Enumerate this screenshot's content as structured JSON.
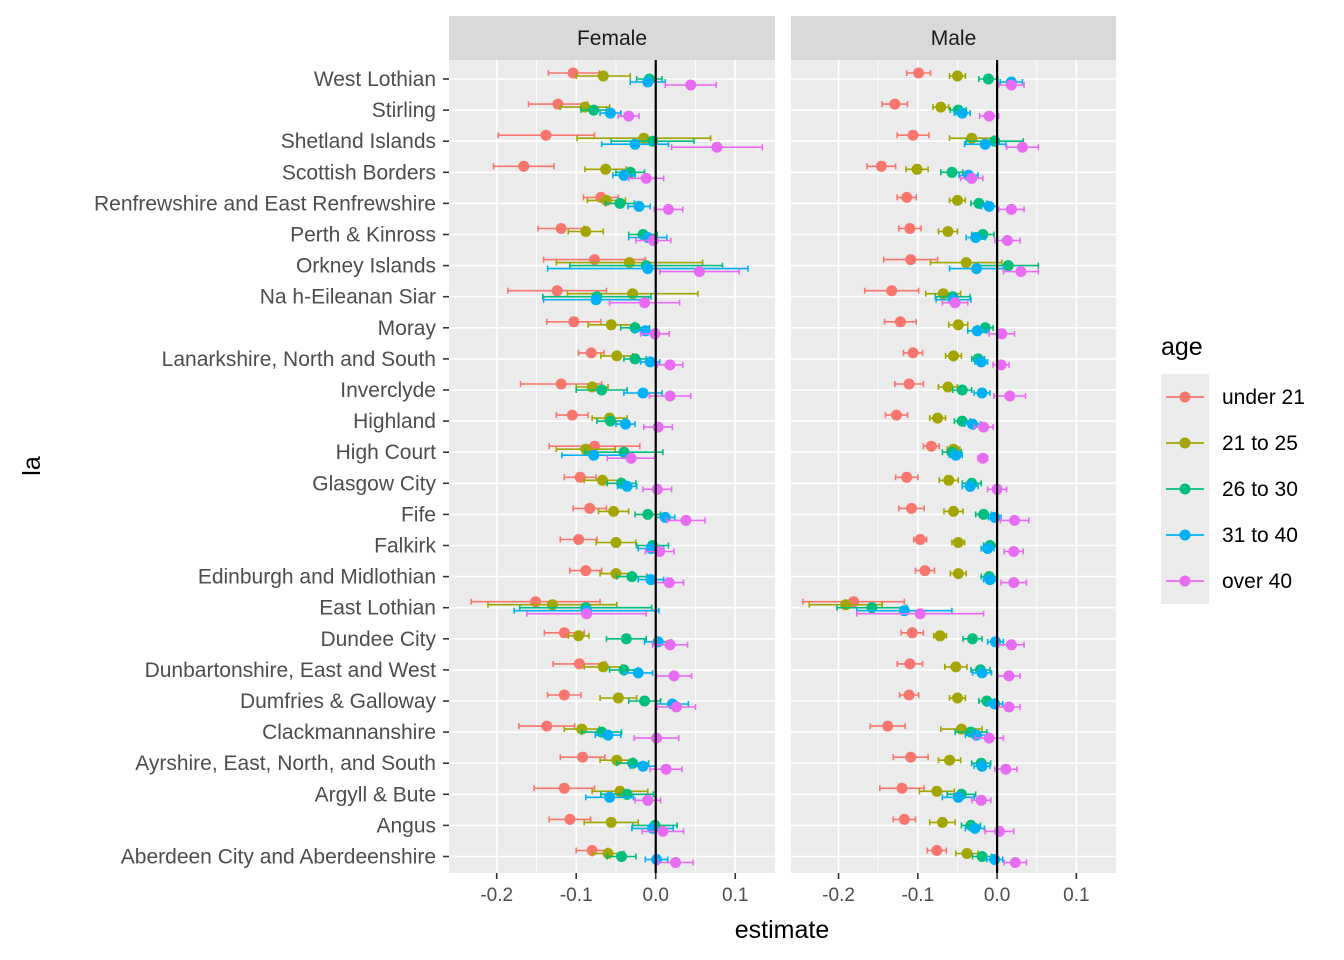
{
  "chart_data": {
    "type": "dot-errorbar",
    "xlabel": "estimate",
    "ylabel": "la",
    "xlim": [
      -0.26,
      0.15
    ],
    "xticks": [
      -0.2,
      -0.1,
      0.0,
      0.1
    ],
    "xtick_labels": [
      "-0.2",
      "-0.1",
      "0.0",
      "0.1"
    ],
    "reference_line": 0,
    "facets": [
      "Female",
      "Male"
    ],
    "categories": [
      "West Lothian",
      "Stirling",
      "Shetland Islands",
      "Scottish Borders",
      "Renfrewshire and East Renfrewshire",
      "Perth & Kinross",
      "Orkney Islands",
      "Na h-Eileanan Siar",
      "Moray",
      "Lanarkshire, North and South",
      "Inverclyde",
      "Highland",
      "High Court",
      "Glasgow City",
      "Fife",
      "Falkirk",
      "Edinburgh and Midlothian",
      "East Lothian",
      "Dundee City",
      "Dunbartonshire, East and West",
      "Dumfries & Galloway",
      "Clackmannanshire",
      "Ayrshire, East, North, and South",
      "Argyll & Bute",
      "Angus",
      "Aberdeen City and Aberdeenshire"
    ],
    "legend": {
      "title": "age",
      "position": "right",
      "entries": [
        "under 21",
        "21 to 25",
        "26 to 30",
        "31 to 40",
        "over 40"
      ]
    },
    "series": [
      {
        "name": "under 21",
        "color": "#F8766D",
        "female": {
          "est": [
            -0.104,
            -0.123,
            -0.138,
            -0.166,
            -0.069,
            -0.119,
            -0.077,
            -0.124,
            -0.103,
            -0.081,
            -0.119,
            -0.105,
            -0.077,
            -0.095,
            -0.083,
            -0.097,
            -0.088,
            -0.151,
            -0.115,
            -0.096,
            -0.115,
            -0.137,
            -0.092,
            -0.115,
            -0.108,
            -0.08
          ],
          "lo": [
            -0.135,
            -0.16,
            -0.198,
            -0.204,
            -0.091,
            -0.148,
            -0.141,
            -0.186,
            -0.137,
            -0.097,
            -0.17,
            -0.125,
            -0.134,
            -0.115,
            -0.104,
            -0.12,
            -0.108,
            -0.232,
            -0.14,
            -0.129,
            -0.136,
            -0.172,
            -0.12,
            -0.153,
            -0.134,
            -0.1
          ],
          "hi": [
            -0.071,
            -0.086,
            -0.077,
            -0.128,
            -0.047,
            -0.09,
            -0.013,
            -0.062,
            -0.069,
            -0.065,
            -0.068,
            -0.085,
            -0.02,
            -0.075,
            -0.062,
            -0.074,
            -0.068,
            -0.07,
            -0.09,
            -0.063,
            -0.094,
            -0.102,
            -0.064,
            -0.077,
            -0.082,
            -0.06
          ]
        },
        "male": {
          "est": [
            -0.099,
            -0.129,
            -0.106,
            -0.146,
            -0.114,
            -0.11,
            -0.109,
            -0.133,
            -0.122,
            -0.106,
            -0.111,
            -0.127,
            -0.083,
            -0.114,
            -0.108,
            -0.097,
            -0.091,
            -0.181,
            -0.107,
            -0.11,
            -0.111,
            -0.138,
            -0.109,
            -0.12,
            -0.117,
            -0.076
          ],
          "lo": [
            -0.114,
            -0.145,
            -0.126,
            -0.164,
            -0.126,
            -0.124,
            -0.143,
            -0.167,
            -0.142,
            -0.118,
            -0.129,
            -0.141,
            -0.093,
            -0.128,
            -0.124,
            -0.105,
            -0.103,
            -0.245,
            -0.121,
            -0.126,
            -0.123,
            -0.16,
            -0.131,
            -0.148,
            -0.131,
            -0.088
          ],
          "hi": [
            -0.084,
            -0.113,
            -0.086,
            -0.128,
            -0.102,
            -0.096,
            -0.075,
            -0.099,
            -0.102,
            -0.094,
            -0.093,
            -0.113,
            -0.073,
            -0.1,
            -0.092,
            -0.089,
            -0.079,
            -0.117,
            -0.093,
            -0.094,
            -0.099,
            -0.116,
            -0.087,
            -0.092,
            -0.103,
            -0.064
          ]
        }
      },
      {
        "name": "21 to 25",
        "color": "#A3A500",
        "female": {
          "est": [
            -0.066,
            -0.089,
            -0.015,
            -0.063,
            -0.062,
            -0.088,
            -0.033,
            -0.029,
            -0.056,
            -0.049,
            -0.08,
            -0.058,
            -0.088,
            -0.067,
            -0.053,
            -0.05,
            -0.05,
            -0.13,
            -0.097,
            -0.066,
            -0.047,
            -0.093,
            -0.049,
            -0.045,
            -0.056,
            -0.06
          ],
          "lo": [
            -0.1,
            -0.12,
            -0.099,
            -0.089,
            -0.086,
            -0.11,
            -0.125,
            -0.111,
            -0.085,
            -0.069,
            -0.1,
            -0.08,
            -0.125,
            -0.09,
            -0.072,
            -0.075,
            -0.07,
            -0.211,
            -0.11,
            -0.09,
            -0.07,
            -0.115,
            -0.07,
            -0.08,
            -0.09,
            -0.08
          ],
          "hi": [
            -0.032,
            -0.058,
            0.069,
            -0.037,
            -0.038,
            -0.066,
            0.059,
            0.053,
            -0.027,
            -0.029,
            -0.06,
            -0.036,
            -0.051,
            -0.044,
            -0.034,
            -0.025,
            -0.03,
            -0.049,
            -0.084,
            -0.042,
            -0.024,
            -0.071,
            -0.028,
            -0.01,
            -0.022,
            -0.04
          ]
        },
        "male": {
          "est": [
            -0.05,
            -0.071,
            -0.032,
            -0.101,
            -0.05,
            -0.062,
            -0.039,
            -0.068,
            -0.049,
            -0.055,
            -0.062,
            -0.075,
            -0.055,
            -0.061,
            -0.055,
            -0.049,
            -0.049,
            -0.191,
            -0.072,
            -0.052,
            -0.05,
            -0.045,
            -0.06,
            -0.076,
            -0.069,
            -0.038
          ],
          "lo": [
            -0.06,
            -0.081,
            -0.06,
            -0.115,
            -0.06,
            -0.074,
            -0.084,
            -0.09,
            -0.061,
            -0.065,
            -0.074,
            -0.085,
            -0.063,
            -0.073,
            -0.067,
            -0.057,
            -0.059,
            -0.237,
            -0.08,
            -0.066,
            -0.06,
            -0.071,
            -0.074,
            -0.098,
            -0.085,
            -0.052
          ],
          "hi": [
            -0.04,
            -0.061,
            -0.004,
            -0.087,
            -0.04,
            -0.05,
            0.006,
            -0.046,
            -0.037,
            -0.045,
            -0.05,
            -0.065,
            -0.047,
            -0.049,
            -0.043,
            -0.041,
            -0.039,
            -0.145,
            -0.064,
            -0.038,
            -0.04,
            -0.019,
            -0.046,
            -0.054,
            -0.053,
            -0.024
          ]
        }
      },
      {
        "name": "26 to 30",
        "color": "#00BF7D",
        "female": {
          "est": [
            -0.008,
            -0.078,
            -0.004,
            -0.032,
            -0.045,
            -0.016,
            -0.012,
            -0.074,
            -0.026,
            -0.026,
            -0.068,
            -0.057,
            -0.04,
            -0.043,
            -0.01,
            -0.004,
            -0.03,
            -0.088,
            -0.037,
            -0.04,
            -0.014,
            -0.068,
            -0.029,
            -0.036,
            -0.001,
            -0.043
          ],
          "lo": [
            -0.024,
            -0.094,
            -0.056,
            -0.05,
            -0.063,
            -0.034,
            -0.108,
            -0.142,
            -0.044,
            -0.04,
            -0.1,
            -0.074,
            -0.089,
            -0.061,
            -0.026,
            -0.024,
            -0.049,
            -0.171,
            -0.062,
            -0.058,
            -0.034,
            -0.093,
            -0.049,
            -0.069,
            -0.029,
            -0.061
          ],
          "hi": [
            0.008,
            -0.062,
            0.048,
            -0.014,
            -0.027,
            0.002,
            0.084,
            -0.006,
            -0.008,
            -0.012,
            -0.036,
            -0.04,
            0.009,
            -0.025,
            0.006,
            0.016,
            -0.011,
            -0.005,
            -0.012,
            -0.022,
            0.006,
            -0.043,
            -0.009,
            -0.003,
            0.027,
            -0.025
          ]
        },
        "male": {
          "est": [
            -0.011,
            -0.049,
            -0.003,
            -0.057,
            -0.023,
            -0.018,
            0.014,
            -0.056,
            -0.015,
            -0.024,
            -0.044,
            -0.044,
            -0.057,
            -0.032,
            -0.017,
            -0.009,
            -0.01,
            -0.158,
            -0.031,
            -0.021,
            -0.013,
            -0.033,
            -0.02,
            -0.045,
            -0.033,
            -0.019
          ],
          "lo": [
            -0.023,
            -0.059,
            -0.039,
            -0.071,
            -0.033,
            -0.032,
            -0.024,
            -0.078,
            -0.025,
            -0.032,
            -0.056,
            -0.054,
            -0.069,
            -0.044,
            -0.027,
            -0.017,
            -0.02,
            -0.202,
            -0.043,
            -0.033,
            -0.023,
            -0.053,
            -0.032,
            -0.063,
            -0.045,
            -0.031
          ],
          "hi": [
            0.001,
            -0.039,
            0.033,
            -0.043,
            -0.013,
            -0.004,
            0.052,
            -0.034,
            -0.005,
            -0.016,
            -0.032,
            -0.034,
            -0.045,
            -0.02,
            -0.007,
            -0.001,
            0.0,
            -0.114,
            -0.019,
            -0.009,
            -0.003,
            -0.013,
            -0.008,
            -0.027,
            -0.021,
            -0.007
          ]
        }
      },
      {
        "name": "31 to 40",
        "color": "#00B0F6",
        "female": {
          "est": [
            -0.01,
            -0.057,
            -0.026,
            -0.04,
            -0.021,
            -0.01,
            -0.01,
            -0.075,
            -0.013,
            -0.007,
            -0.016,
            -0.038,
            -0.078,
            -0.036,
            0.012,
            -0.006,
            -0.006,
            -0.087,
            0.003,
            -0.022,
            0.021,
            -0.06,
            -0.016,
            -0.058,
            -0.004,
            0.001
          ],
          "lo": [
            -0.032,
            -0.07,
            -0.068,
            -0.054,
            -0.035,
            -0.034,
            -0.136,
            -0.141,
            -0.027,
            -0.019,
            -0.04,
            -0.05,
            -0.118,
            -0.048,
            0.0,
            -0.022,
            -0.022,
            -0.178,
            -0.014,
            -0.04,
            0.001,
            -0.076,
            -0.032,
            -0.088,
            -0.03,
            -0.013
          ],
          "hi": [
            0.012,
            -0.044,
            0.016,
            -0.026,
            -0.007,
            0.014,
            0.116,
            -0.009,
            0.001,
            0.005,
            0.008,
            -0.026,
            -0.038,
            -0.024,
            0.024,
            0.01,
            0.01,
            0.004,
            0.02,
            -0.004,
            0.041,
            -0.044,
            0.0,
            -0.028,
            0.022,
            0.015
          ]
        },
        "male": {
          "est": [
            0.018,
            -0.044,
            -0.015,
            -0.036,
            -0.01,
            -0.027,
            -0.026,
            -0.055,
            -0.025,
            -0.02,
            -0.019,
            -0.031,
            -0.052,
            -0.034,
            -0.003,
            -0.012,
            -0.009,
            -0.117,
            -0.002,
            -0.019,
            -0.003,
            -0.026,
            -0.019,
            -0.049,
            -0.028,
            -0.003
          ],
          "lo": [
            0.004,
            -0.054,
            -0.041,
            -0.048,
            -0.02,
            -0.039,
            -0.06,
            -0.077,
            -0.037,
            -0.028,
            -0.029,
            -0.041,
            -0.06,
            -0.044,
            -0.011,
            -0.02,
            -0.017,
            -0.177,
            -0.012,
            -0.031,
            -0.013,
            -0.04,
            -0.029,
            -0.069,
            -0.04,
            -0.013
          ],
          "hi": [
            0.032,
            -0.034,
            0.011,
            -0.024,
            0.0,
            -0.015,
            0.008,
            -0.033,
            -0.013,
            -0.012,
            -0.009,
            -0.021,
            -0.044,
            -0.024,
            0.005,
            -0.004,
            -0.001,
            -0.057,
            0.008,
            -0.007,
            0.007,
            -0.012,
            -0.009,
            -0.029,
            -0.016,
            0.007
          ]
        }
      },
      {
        "name": "over 40",
        "color": "#E76BF3",
        "female": {
          "est": [
            0.044,
            -0.034,
            0.077,
            -0.012,
            0.016,
            -0.003,
            0.055,
            -0.014,
            -0.001,
            0.018,
            0.018,
            0.003,
            -0.031,
            0.002,
            0.038,
            0.005,
            0.017,
            -0.087,
            0.018,
            0.023,
            0.026,
            0.001,
            0.013,
            -0.01,
            0.009,
            0.025
          ],
          "lo": [
            0.012,
            -0.047,
            0.02,
            -0.034,
            -0.002,
            -0.025,
            0.005,
            -0.058,
            -0.019,
            0.002,
            -0.008,
            -0.015,
            -0.061,
            -0.016,
            0.014,
            -0.013,
            -0.001,
            -0.162,
            -0.004,
            0.001,
            0.002,
            -0.027,
            -0.007,
            -0.026,
            -0.017,
            0.003
          ],
          "hi": [
            0.076,
            -0.021,
            0.134,
            0.01,
            0.034,
            0.019,
            0.105,
            0.03,
            0.017,
            0.034,
            0.044,
            0.021,
            -0.001,
            0.02,
            0.062,
            0.023,
            0.035,
            -0.012,
            0.04,
            0.045,
            0.05,
            0.029,
            0.033,
            0.006,
            0.035,
            0.047
          ]
        },
        "male": {
          "est": [
            0.018,
            -0.01,
            0.032,
            -0.032,
            0.018,
            0.013,
            0.03,
            -0.053,
            0.006,
            0.005,
            0.016,
            -0.017,
            -0.018,
            0.0,
            0.022,
            0.021,
            0.021,
            -0.097,
            0.018,
            0.015,
            0.015,
            -0.01,
            0.011,
            -0.02,
            0.003,
            0.023
          ],
          "lo": [
            0.002,
            -0.022,
            0.012,
            -0.046,
            0.002,
            -0.003,
            0.008,
            -0.069,
            -0.01,
            -0.005,
            -0.004,
            -0.029,
            -0.024,
            -0.012,
            0.004,
            0.009,
            0.005,
            -0.177,
            0.002,
            0.001,
            0.001,
            -0.028,
            -0.003,
            -0.032,
            -0.015,
            0.009
          ],
          "hi": [
            0.034,
            0.002,
            0.052,
            -0.018,
            0.034,
            0.029,
            0.052,
            -0.037,
            0.022,
            0.015,
            0.036,
            -0.005,
            -0.012,
            0.012,
            0.04,
            0.033,
            0.037,
            -0.017,
            0.034,
            0.029,
            0.029,
            0.008,
            0.025,
            -0.008,
            0.021,
            0.037
          ]
        }
      }
    ]
  }
}
